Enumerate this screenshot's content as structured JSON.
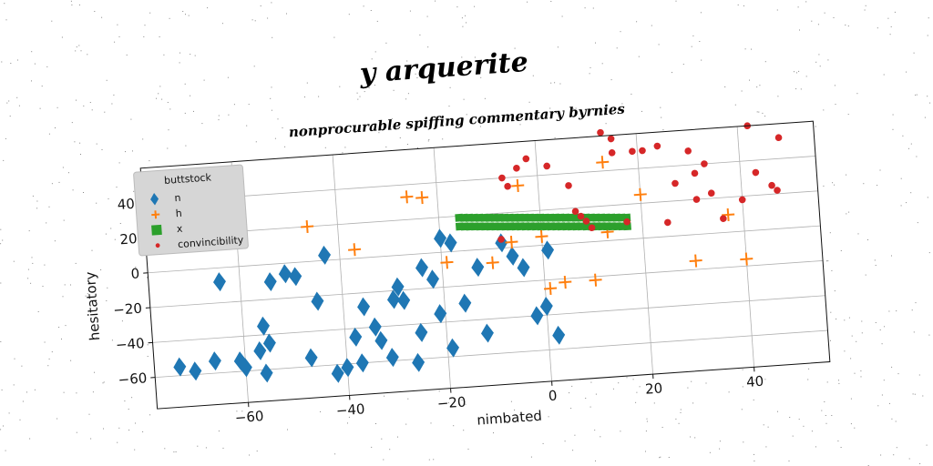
{
  "chart_data": {
    "type": "scatter",
    "title": "y arquerite",
    "subtitle": "nonprocurable spiffing commentary byrnies",
    "xlabel": "nimbated",
    "ylabel": "hesitatory",
    "xlim": [
      -78,
      55
    ],
    "ylim": [
      -78,
      60
    ],
    "xticks": [
      -60,
      -40,
      -20,
      0,
      20,
      40
    ],
    "yticks": [
      -60,
      -40,
      -20,
      0,
      20,
      40
    ],
    "grid": true,
    "legend": {
      "title": "buttstock",
      "placement": "top-left"
    },
    "series": [
      {
        "name": "n",
        "marker": "diamond",
        "color": "#1f77b4",
        "points": [
          [
            -73,
            -55
          ],
          [
            -70,
            -58
          ],
          [
            -66,
            -53
          ],
          [
            -61,
            -54
          ],
          [
            -57,
            -49
          ],
          [
            -56,
            -62
          ],
          [
            -56,
            -35
          ],
          [
            -55,
            -45
          ],
          [
            -54,
            -10
          ],
          [
            -51,
            -6
          ],
          [
            -49,
            -8
          ],
          [
            -47,
            -55
          ],
          [
            -45,
            -23
          ],
          [
            -42,
            -65
          ],
          [
            -40,
            -62
          ],
          [
            -38,
            -45
          ],
          [
            -37,
            -60
          ],
          [
            -36,
            -28
          ],
          [
            -34,
            -40
          ],
          [
            -33,
            -48
          ],
          [
            -31,
            -58
          ],
          [
            -30,
            -25
          ],
          [
            -29,
            -18
          ],
          [
            -28,
            -26
          ],
          [
            -26,
            -62
          ],
          [
            -25,
            -45
          ],
          [
            -24,
            -8
          ],
          [
            -22,
            -15
          ],
          [
            -21,
            -35
          ],
          [
            -20,
            8
          ],
          [
            -19,
            -55
          ],
          [
            -18,
            5
          ],
          [
            -16,
            -30
          ],
          [
            -13,
            -10
          ],
          [
            -12,
            -48
          ],
          [
            -8,
            3
          ],
          [
            -6,
            -5
          ],
          [
            -4,
            -12
          ],
          [
            -2,
            -40
          ],
          [
            0,
            -35
          ],
          [
            1,
            -3
          ],
          [
            2,
            -52
          ],
          [
            -64,
            -8
          ],
          [
            -43,
            3
          ],
          [
            -60,
            -58
          ]
        ]
      },
      {
        "name": "h",
        "marker": "plus",
        "color": "#ff7f0e",
        "points": [
          [
            -46,
            20
          ],
          [
            -37,
            5
          ],
          [
            -26,
            33
          ],
          [
            -23,
            32
          ],
          [
            -19,
            -6
          ],
          [
            -10,
            -8
          ],
          [
            -6,
            3
          ],
          [
            -4,
            35
          ],
          [
            1,
            -25
          ],
          [
            4,
            -22
          ],
          [
            10,
            -22
          ],
          [
            13,
            45
          ],
          [
            13,
            5
          ],
          [
            20,
            25
          ],
          [
            30,
            -15
          ],
          [
            37,
            10
          ],
          [
            40,
            -16
          ],
          [
            0,
            5
          ]
        ]
      },
      {
        "name": "x",
        "marker": "square",
        "color": "#2ca02c",
        "points": [
          [
            -16.0,
            19.0
          ],
          [
            -15.0,
            18.8
          ],
          [
            -14.0,
            18.6
          ],
          [
            -13.0,
            18.4
          ],
          [
            -12.0,
            18.2
          ],
          [
            -11.0,
            18.0
          ],
          [
            -10.0,
            17.8
          ],
          [
            -9.0,
            17.6
          ],
          [
            -8.0,
            17.4
          ],
          [
            -7.0,
            17.2
          ],
          [
            -6.0,
            17.0
          ],
          [
            -5.0,
            16.8
          ],
          [
            -4.0,
            16.6
          ],
          [
            -3.0,
            16.4
          ],
          [
            -2.0,
            16.2
          ],
          [
            -1.0,
            16.0
          ],
          [
            0.0,
            15.8
          ],
          [
            1.0,
            15.6
          ],
          [
            2.0,
            15.4
          ],
          [
            3.0,
            15.2
          ],
          [
            4.0,
            15.0
          ],
          [
            5.0,
            14.8
          ],
          [
            6.0,
            14.6
          ],
          [
            7.0,
            14.4
          ],
          [
            8.0,
            14.2
          ],
          [
            9.0,
            14.0
          ],
          [
            10.0,
            13.8
          ],
          [
            11.0,
            13.6
          ],
          [
            12.0,
            13.4
          ],
          [
            13.0,
            13.2
          ],
          [
            14.0,
            13.0
          ],
          [
            15.0,
            12.8
          ],
          [
            16.0,
            12.6
          ],
          [
            17.0,
            12.4
          ],
          [
            -16.0,
            14.0
          ],
          [
            -15.0,
            13.8
          ],
          [
            -14.0,
            13.6
          ],
          [
            -13.0,
            13.4
          ],
          [
            -12.0,
            13.2
          ],
          [
            -11.0,
            13.0
          ],
          [
            -10.0,
            12.8
          ],
          [
            -9.0,
            12.6
          ],
          [
            -8.0,
            12.4
          ],
          [
            -7.0,
            12.2
          ],
          [
            -6.0,
            12.0
          ],
          [
            -5.0,
            11.8
          ],
          [
            -4.0,
            11.6
          ],
          [
            -3.0,
            11.4
          ],
          [
            -2.0,
            11.2
          ],
          [
            -1.0,
            11.0
          ],
          [
            0.0,
            10.8
          ],
          [
            1.0,
            10.6
          ],
          [
            2.0,
            10.4
          ],
          [
            3.0,
            10.2
          ],
          [
            4.0,
            10.0
          ],
          [
            5.0,
            9.8
          ],
          [
            6.0,
            9.6
          ],
          [
            7.0,
            9.4
          ],
          [
            8.0,
            9.2
          ],
          [
            9.0,
            9.0
          ],
          [
            10.0,
            8.8
          ],
          [
            11.0,
            8.6
          ],
          [
            12.0,
            8.4
          ],
          [
            13.0,
            8.2
          ],
          [
            14.0,
            8.0
          ],
          [
            15.0,
            7.8
          ],
          [
            16.0,
            7.6
          ],
          [
            17.0,
            7.4
          ]
        ]
      },
      {
        "name": "convincibility",
        "marker": "circle",
        "color": "#d62728",
        "points": [
          [
            -8,
            5
          ],
          [
            -7,
            40
          ],
          [
            -6,
            35
          ],
          [
            -4,
            45
          ],
          [
            -2,
            50
          ],
          [
            2,
            45
          ],
          [
            6,
            33
          ],
          [
            7,
            18
          ],
          [
            8,
            15
          ],
          [
            9,
            12
          ],
          [
            10,
            8
          ],
          [
            13,
            62
          ],
          [
            15,
            58
          ],
          [
            15,
            50
          ],
          [
            17,
            10
          ],
          [
            19,
            50
          ],
          [
            21,
            50
          ],
          [
            24,
            52
          ],
          [
            25,
            8
          ],
          [
            27,
            30
          ],
          [
            30,
            48
          ],
          [
            31,
            20
          ],
          [
            31,
            35
          ],
          [
            33,
            40
          ],
          [
            34,
            23
          ],
          [
            36,
            8
          ],
          [
            40,
            18
          ],
          [
            42,
            60
          ],
          [
            43,
            33
          ],
          [
            46,
            25
          ],
          [
            47,
            22
          ],
          [
            48,
            52
          ]
        ]
      }
    ]
  }
}
